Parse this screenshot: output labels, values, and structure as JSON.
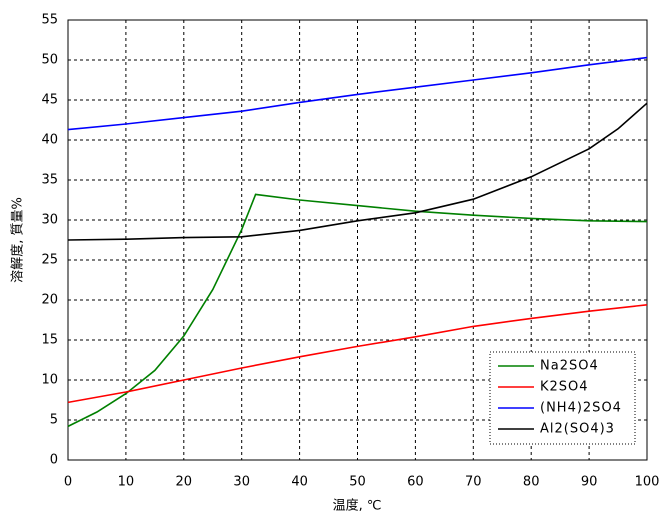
{
  "chart_data": {
    "type": "line",
    "x_label": "温度, ℃",
    "y_label": "溶解度, 質量%",
    "xlim": [
      0,
      100
    ],
    "ylim": [
      0,
      55
    ],
    "xticks": [
      0,
      10,
      20,
      30,
      40,
      50,
      60,
      70,
      80,
      90,
      100
    ],
    "yticks": [
      0,
      5,
      10,
      15,
      20,
      25,
      30,
      35,
      40,
      45,
      50,
      55
    ],
    "grid": true,
    "legend": "lower right",
    "series": [
      {
        "name": "Na2SO4",
        "color": "#008000",
        "x": [
          0,
          5,
          10,
          15,
          20,
          25,
          30,
          32.4,
          40,
          50,
          60,
          70,
          80,
          90,
          100
        ],
        "values": [
          4.2,
          6,
          8.3,
          11.2,
          15.5,
          21.3,
          28.8,
          33.2,
          32.5,
          31.8,
          31.1,
          30.6,
          30.2,
          29.9,
          29.8
        ]
      },
      {
        "name": "K2SO4",
        "color": "#ff0000",
        "x": [
          0,
          10,
          20,
          30,
          40,
          50,
          60,
          70,
          80,
          90,
          100
        ],
        "values": [
          7.2,
          8.5,
          10,
          11.5,
          12.9,
          14.2,
          15.4,
          16.7,
          17.7,
          18.6,
          19.4
        ]
      },
      {
        "name": "(NH4)2SO4",
        "color": "#0000ff",
        "x": [
          0,
          10,
          20,
          30,
          40,
          50,
          60,
          70,
          80,
          90,
          100
        ],
        "values": [
          41.3,
          42,
          42.8,
          43.6,
          44.7,
          45.7,
          46.6,
          47.5,
          48.4,
          49.4,
          50.3
        ]
      },
      {
        "name": "Al2(SO4)3",
        "color": "#000000",
        "x": [
          0,
          10,
          20,
          30,
          40,
          50,
          60,
          70,
          80,
          90,
          95,
          100
        ],
        "values": [
          27.5,
          27.6,
          27.8,
          27.9,
          28.7,
          29.9,
          30.9,
          32.6,
          35.4,
          38.9,
          41.4,
          44.6
        ]
      }
    ]
  }
}
